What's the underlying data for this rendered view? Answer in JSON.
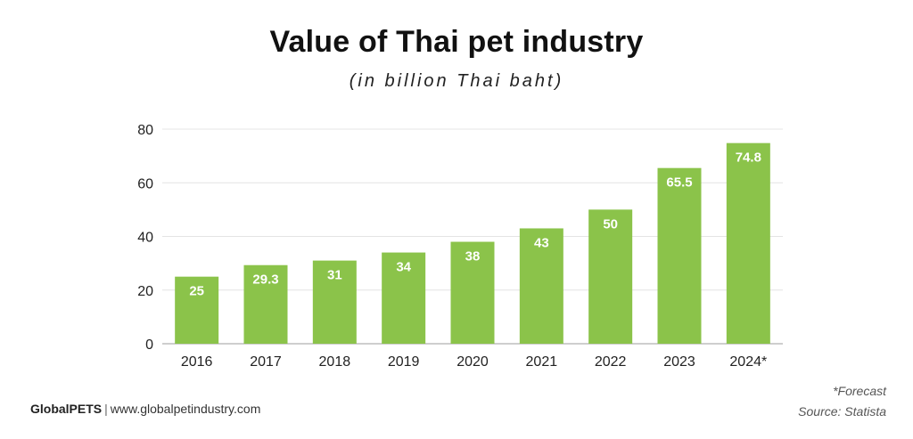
{
  "chart_data": {
    "type": "bar",
    "title": "Value of Thai pet industry",
    "subtitle": "(in billion Thai baht)",
    "categories": [
      "2016",
      "2017",
      "2018",
      "2019",
      "2020",
      "2021",
      "2022",
      "2023",
      "2024*"
    ],
    "values": [
      25,
      29.3,
      31,
      34,
      38,
      43,
      50,
      65.5,
      74.8
    ],
    "data_labels": [
      "25",
      "29.3",
      "31",
      "34",
      "38",
      "43",
      "50",
      "65.5",
      "74.8"
    ],
    "yticks": [
      "0",
      "20",
      "40",
      "60",
      "80"
    ],
    "ytick_values": [
      0,
      20,
      40,
      60,
      80
    ],
    "ylim": [
      0,
      80
    ],
    "xlabel": "",
    "ylabel": "",
    "grid": true,
    "bar_color": "#8bc34a",
    "label_color": "#ffffff"
  },
  "footer": {
    "brand": "GlobalPETS",
    "separator": "|",
    "url": "www.globalpetindustry.com",
    "note": "*Forecast",
    "source": "Source: Statista"
  }
}
